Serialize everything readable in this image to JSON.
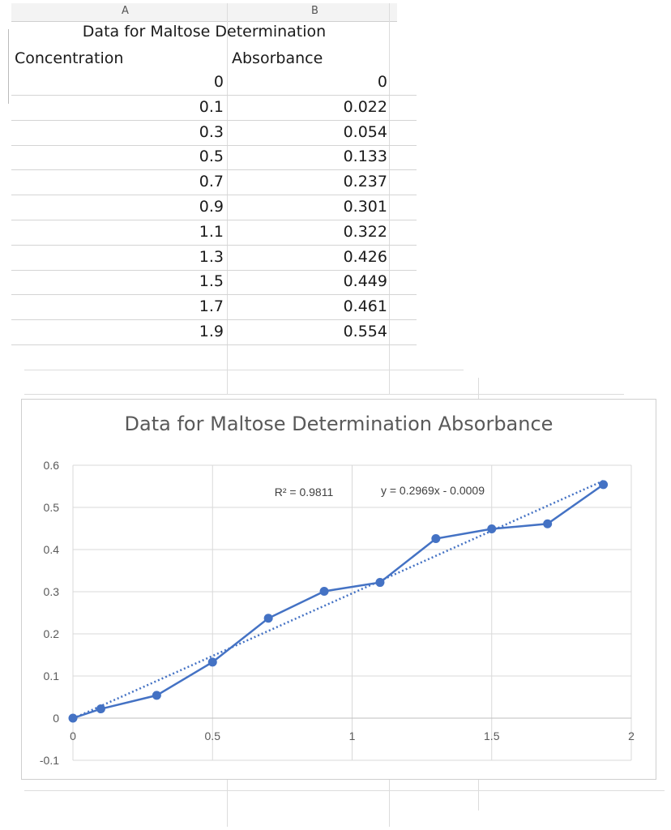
{
  "sheet": {
    "col_a_letter": "A",
    "col_b_letter": "B",
    "title": "Data for Maltose Determination",
    "headers": [
      "Concentration",
      "Absorbance"
    ],
    "rows": [
      [
        "0",
        "0"
      ],
      [
        "0.1",
        "0.022"
      ],
      [
        "0.3",
        "0.054"
      ],
      [
        "0.5",
        "0.133"
      ],
      [
        "0.7",
        "0.237"
      ],
      [
        "0.9",
        "0.301"
      ],
      [
        "1.1",
        "0.322"
      ],
      [
        "1.3",
        "0.426"
      ],
      [
        "1.5",
        "0.449"
      ],
      [
        "1.7",
        "0.461"
      ],
      [
        "1.9",
        "0.554"
      ]
    ]
  },
  "chart_data": {
    "type": "line",
    "title": "Data for Maltose Determination Absorbance",
    "xlabel": "",
    "ylabel": "",
    "x": [
      0,
      0.1,
      0.3,
      0.5,
      0.7,
      0.9,
      1.1,
      1.3,
      1.5,
      1.7,
      1.9
    ],
    "series": [
      {
        "values": [
          0,
          0.022,
          0.054,
          0.133,
          0.237,
          0.301,
          0.322,
          0.426,
          0.449,
          0.461,
          0.554
        ],
        "color": "#4472c4"
      }
    ],
    "trendline": {
      "type": "linear",
      "slope": 0.2969,
      "intercept": -0.0009,
      "x_range": [
        0,
        1.9
      ],
      "color": "#4472c4",
      "style": "dotted"
    },
    "annotations": {
      "r_squared": "R² = 0.9811",
      "equation": "y = 0.2969x - 0.0009"
    },
    "xlim": [
      0,
      2
    ],
    "ylim": [
      -0.1,
      0.6
    ],
    "xticks": [
      0,
      0.5,
      1,
      1.5,
      2
    ],
    "xtick_labels": [
      "0",
      "0.5",
      "1",
      "1.5",
      "2"
    ],
    "yticks": [
      -0.1,
      0,
      0.1,
      0.2,
      0.3,
      0.4,
      0.5,
      0.6
    ],
    "ytick_labels": [
      "-0.1",
      "0",
      "0.1",
      "0.2",
      "0.3",
      "0.4",
      "0.5",
      "0.6"
    ],
    "grid": true,
    "legend": "none"
  }
}
